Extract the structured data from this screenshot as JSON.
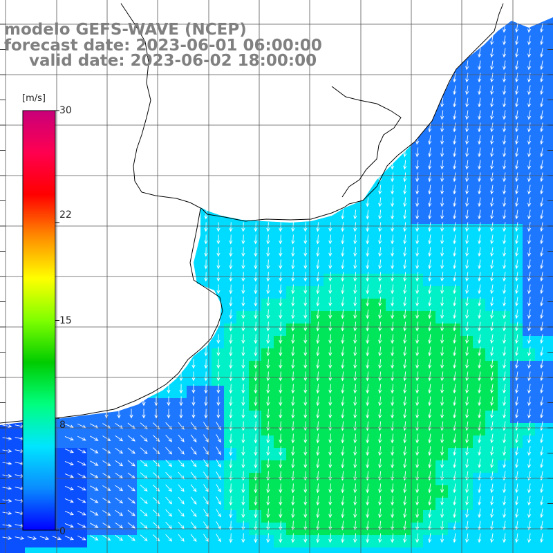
{
  "title": {
    "line1": "modelo GEFS-WAVE (NCEP)",
    "line2": "forecast date: 2023-06-01 06:00:00",
    "line3": "valid date: 2023-06-02 18:00:00"
  },
  "colorbar": {
    "unit": "[m/s]",
    "ticks": [
      {
        "label": "30",
        "value": 30
      },
      {
        "label": "22",
        "value": 22
      },
      {
        "label": "15",
        "value": 15
      },
      {
        "label": "8",
        "value": 8
      },
      {
        "label": "0",
        "value": 0
      }
    ],
    "range": [
      0,
      30
    ],
    "colors": [
      "#0000ff",
      "#0a8cff",
      "#00e5ff",
      "#00ff7f",
      "#00cc00",
      "#7fff00",
      "#ffff00",
      "#ff8c00",
      "#ff0000",
      "#ff0050",
      "#c8007a"
    ]
  },
  "map": {
    "land_color": "#ffffff",
    "grid_color": "#555555",
    "coast_color": "#000000",
    "arrow_color": "#ffffff",
    "colors": {
      "blue": "#1e78ff",
      "dark_blue": "#0a50ff",
      "cyan": "#00dcff",
      "aqua_green": "#00f0c8",
      "green": "#00e65a",
      "bright_green": "#00f046"
    }
  }
}
